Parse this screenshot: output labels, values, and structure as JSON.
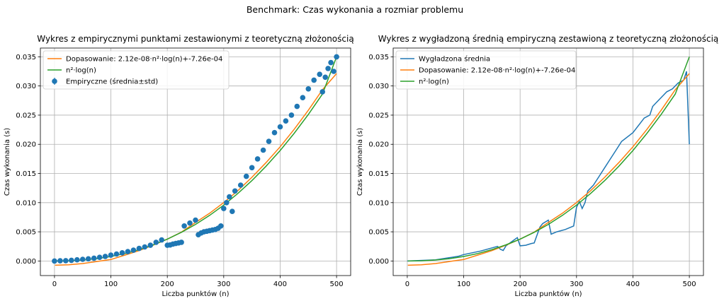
{
  "suptitle": "Benchmark: Czas wykonania a rozmiar problemu",
  "colors": {
    "blue": "#1f77b4",
    "orange": "#ff7f0e",
    "green": "#2ca02c",
    "grid": "#b0b0b0"
  },
  "chart_data": [
    {
      "type": "scatter",
      "title": "Wykres z empirycznymi punktami zestawionymi z teoretyczną złożonością",
      "xlabel": "Liczba punktów (n)",
      "ylabel": "Czas wykonania (s)",
      "xlim": [
        -25,
        525
      ],
      "ylim": [
        -0.0025,
        0.0365
      ],
      "xticks": [
        0,
        100,
        200,
        300,
        400,
        500
      ],
      "yticks": [
        0.0,
        0.005,
        0.01,
        0.015,
        0.02,
        0.025,
        0.03,
        0.035
      ],
      "grid": true,
      "legend_loc": "upper left",
      "legend": [
        "Dopasowanie: 2.12e-08·n²·log(n)+-7.26e-04",
        "n²·log(n)",
        "Empiryczne (średnia±std)"
      ],
      "series": [
        {
          "name": "Dopasowanie: 2.12e-08·n²·log(n)+-7.26e-04",
          "kind": "line",
          "color": "orange",
          "x": [
            1,
            25,
            50,
            75,
            100,
            125,
            150,
            175,
            200,
            225,
            250,
            275,
            300,
            325,
            350,
            375,
            400,
            425,
            450,
            475,
            500
          ],
          "y": [
            -0.00073,
            -0.00066,
            -0.00044,
            -9e-05,
            0.00025,
            0.00101,
            0.00178,
            0.00272,
            0.00375,
            0.00495,
            0.00659,
            0.00818,
            0.01001,
            0.01205,
            0.01435,
            0.01685,
            0.01958,
            0.0226,
            0.02585,
            0.02935,
            0.03213
          ]
        },
        {
          "name": "n²·log(n)",
          "kind": "line",
          "color": "green",
          "x": [
            1,
            25,
            50,
            75,
            100,
            125,
            150,
            175,
            200,
            225,
            250,
            275,
            300,
            325,
            350,
            375,
            400,
            425,
            450,
            475,
            500
          ],
          "y": [
            0.0,
            3e-05,
            0.00016,
            0.0004,
            0.00077,
            0.00128,
            0.00194,
            0.00277,
            0.00375,
            0.00491,
            0.00627,
            0.00782,
            0.00958,
            0.01157,
            0.01378,
            0.01624,
            0.01894,
            0.0219,
            0.02513,
            0.02862,
            0.035
          ]
        },
        {
          "name": "Empiryczne (średnia±std)",
          "kind": "points",
          "color": "blue",
          "x": [
            0,
            10,
            20,
            30,
            40,
            50,
            60,
            70,
            80,
            90,
            100,
            110,
            120,
            130,
            140,
            150,
            160,
            170,
            180,
            190,
            200,
            205,
            210,
            215,
            220,
            225,
            230,
            240,
            250,
            255,
            260,
            265,
            270,
            275,
            280,
            285,
            290,
            295,
            300,
            305,
            310,
            315,
            320,
            330,
            340,
            350,
            360,
            370,
            380,
            390,
            400,
            410,
            420,
            430,
            440,
            450,
            460,
            470,
            475,
            480,
            485,
            490,
            495,
            500
          ],
          "y": [
            0.0,
            3e-05,
            6e-05,
            0.00012,
            0.0002,
            0.00028,
            0.00037,
            0.00048,
            0.00062,
            0.00078,
            0.001,
            0.0012,
            0.0014,
            0.0016,
            0.00185,
            0.00215,
            0.0024,
            0.0027,
            0.0032,
            0.0036,
            0.0027,
            0.00275,
            0.0029,
            0.003,
            0.0031,
            0.0032,
            0.006,
            0.0065,
            0.007,
            0.0045,
            0.0048,
            0.005,
            0.0051,
            0.0052,
            0.0053,
            0.0054,
            0.0056,
            0.006,
            0.009,
            0.01,
            0.011,
            0.0085,
            0.012,
            0.013,
            0.0145,
            0.016,
            0.0175,
            0.019,
            0.0205,
            0.022,
            0.023,
            0.024,
            0.025,
            0.0265,
            0.028,
            0.0295,
            0.031,
            0.032,
            0.029,
            0.0315,
            0.033,
            0.034,
            0.0325,
            0.035
          ]
        }
      ]
    },
    {
      "type": "line",
      "title": "Wykres z wygładzoną średnią empiryczną zestawioną z teoretyczną złożonością",
      "xlabel": "Liczba punktów (n)",
      "ylabel": "Czas wykonania (s)",
      "xlim": [
        -25,
        525
      ],
      "ylim": [
        -0.0025,
        0.0365
      ],
      "xticks": [
        0,
        100,
        200,
        300,
        400,
        500
      ],
      "yticks": [
        0.0,
        0.005,
        0.01,
        0.015,
        0.02,
        0.025,
        0.03,
        0.035
      ],
      "grid": true,
      "legend_loc": "upper left",
      "legend": [
        "Wygładzona średnia",
        "Dopasowanie: 2.12e-08·n²·log(n)+-7.26e-04",
        "n²·log(n)"
      ],
      "series": [
        {
          "name": "Wygładzona średnia",
          "kind": "line",
          "color": "blue",
          "x": [
            0,
            50,
            90,
            100,
            130,
            160,
            165,
            170,
            175,
            185,
            195,
            200,
            210,
            220,
            225,
            235,
            240,
            250,
            255,
            265,
            280,
            295,
            300,
            305,
            310,
            315,
            320,
            330,
            340,
            350,
            360,
            370,
            380,
            400,
            420,
            430,
            435,
            440,
            460,
            470,
            480,
            490,
            495,
            500
          ],
          "y": [
            0.0,
            0.0002,
            0.0008,
            0.0011,
            0.0017,
            0.0025,
            0.002,
            0.0018,
            0.0026,
            0.0033,
            0.004,
            0.0026,
            0.0027,
            0.003,
            0.0031,
            0.0058,
            0.0064,
            0.007,
            0.0046,
            0.005,
            0.0054,
            0.006,
            0.0092,
            0.0102,
            0.009,
            0.01,
            0.012,
            0.013,
            0.0145,
            0.016,
            0.0175,
            0.019,
            0.0205,
            0.022,
            0.0245,
            0.025,
            0.0265,
            0.027,
            0.029,
            0.0295,
            0.0305,
            0.031,
            0.0325,
            0.02
          ]
        },
        {
          "name": "Dopasowanie: 2.12e-08·n²·log(n)+-7.26e-04",
          "kind": "line",
          "color": "orange",
          "x": [
            1,
            25,
            50,
            75,
            100,
            125,
            150,
            175,
            200,
            225,
            250,
            275,
            300,
            325,
            350,
            375,
            400,
            425,
            450,
            475,
            500
          ],
          "y": [
            -0.00073,
            -0.00066,
            -0.00044,
            -9e-05,
            0.00025,
            0.00101,
            0.00178,
            0.00272,
            0.00375,
            0.00495,
            0.00659,
            0.00818,
            0.01001,
            0.01205,
            0.01435,
            0.01685,
            0.01958,
            0.0226,
            0.02585,
            0.02935,
            0.03213
          ]
        },
        {
          "name": "n²·log(n)",
          "kind": "line",
          "color": "green",
          "x": [
            1,
            25,
            50,
            75,
            100,
            125,
            150,
            175,
            200,
            225,
            250,
            275,
            300,
            325,
            350,
            375,
            400,
            425,
            450,
            475,
            500
          ],
          "y": [
            0.0,
            3e-05,
            0.00016,
            0.0004,
            0.00077,
            0.00128,
            0.00194,
            0.00277,
            0.00375,
            0.00491,
            0.00627,
            0.00782,
            0.00958,
            0.01157,
            0.01378,
            0.01624,
            0.01894,
            0.0219,
            0.02513,
            0.02862,
            0.035
          ]
        }
      ]
    }
  ]
}
